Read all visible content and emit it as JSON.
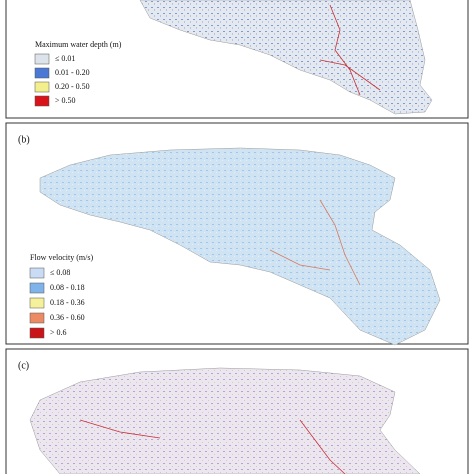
{
  "panels": [
    {
      "legend": {
        "title": "Maximum water depth (m)",
        "items": [
          {
            "label": "≤ 0.01",
            "color": "#dde3ea"
          },
          {
            "label": "0.01 - 0.20",
            "color": "#4a78d4"
          },
          {
            "label": "0.20 - 0.50",
            "color": "#f3ef8c"
          },
          {
            "label": "> 0.50",
            "color": "#d8141a"
          }
        ]
      }
    },
    {
      "label": "(b)",
      "legend": {
        "title": "Flow velocity (m/s)",
        "items": [
          {
            "label": "≤ 0.08",
            "color": "#c9dcf3"
          },
          {
            "label": "0.08 - 0.18",
            "color": "#7fb3ea"
          },
          {
            "label": "0.18 - 0.36",
            "color": "#f5f09a"
          },
          {
            "label": "0.36 - 0.60",
            "color": "#ec8a63"
          },
          {
            "label": "> 0.6",
            "color": "#c9141a"
          }
        ]
      }
    },
    {
      "label": "(c)"
    }
  ]
}
